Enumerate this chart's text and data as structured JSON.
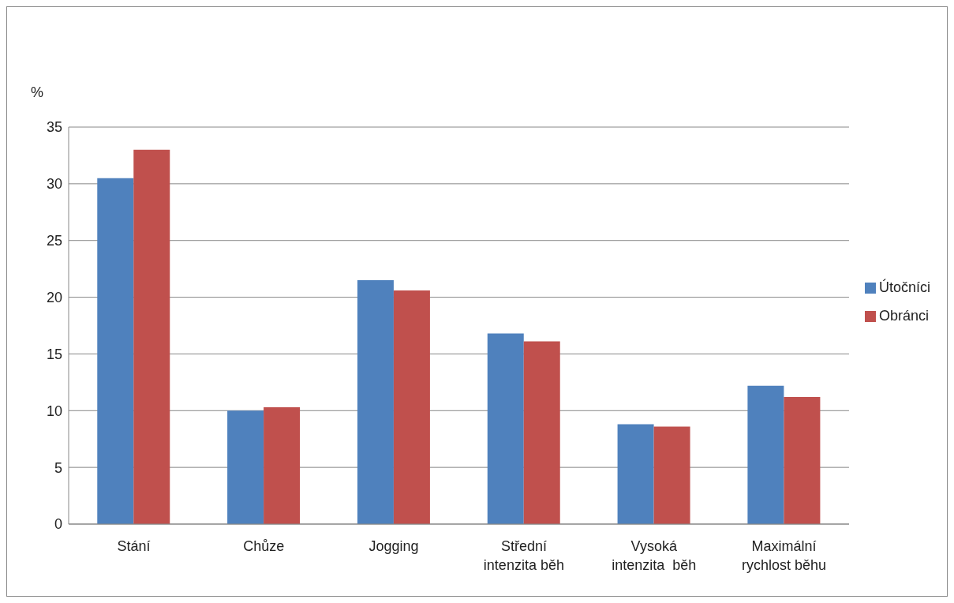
{
  "chart_data": {
    "type": "bar",
    "ylabel": "%",
    "categories": [
      "Stání",
      "Chůze",
      "Jogging",
      "Střední\nintenzita běh",
      "Vysoká\nintenzita  běh",
      "Maximální\nrychlost běhu"
    ],
    "series": [
      {
        "name": "Útočníci",
        "color": "#4f81bd",
        "values": [
          30.5,
          10.0,
          21.5,
          16.8,
          8.8,
          12.2
        ]
      },
      {
        "name": "Obránci",
        "color": "#c0504d",
        "values": [
          33.0,
          10.3,
          20.6,
          16.1,
          8.6,
          11.2
        ]
      }
    ],
    "ylim": [
      0,
      35
    ],
    "yticks": [
      0,
      5,
      10,
      15,
      20,
      25,
      30,
      35
    ],
    "grid": "y",
    "legend": "right"
  }
}
